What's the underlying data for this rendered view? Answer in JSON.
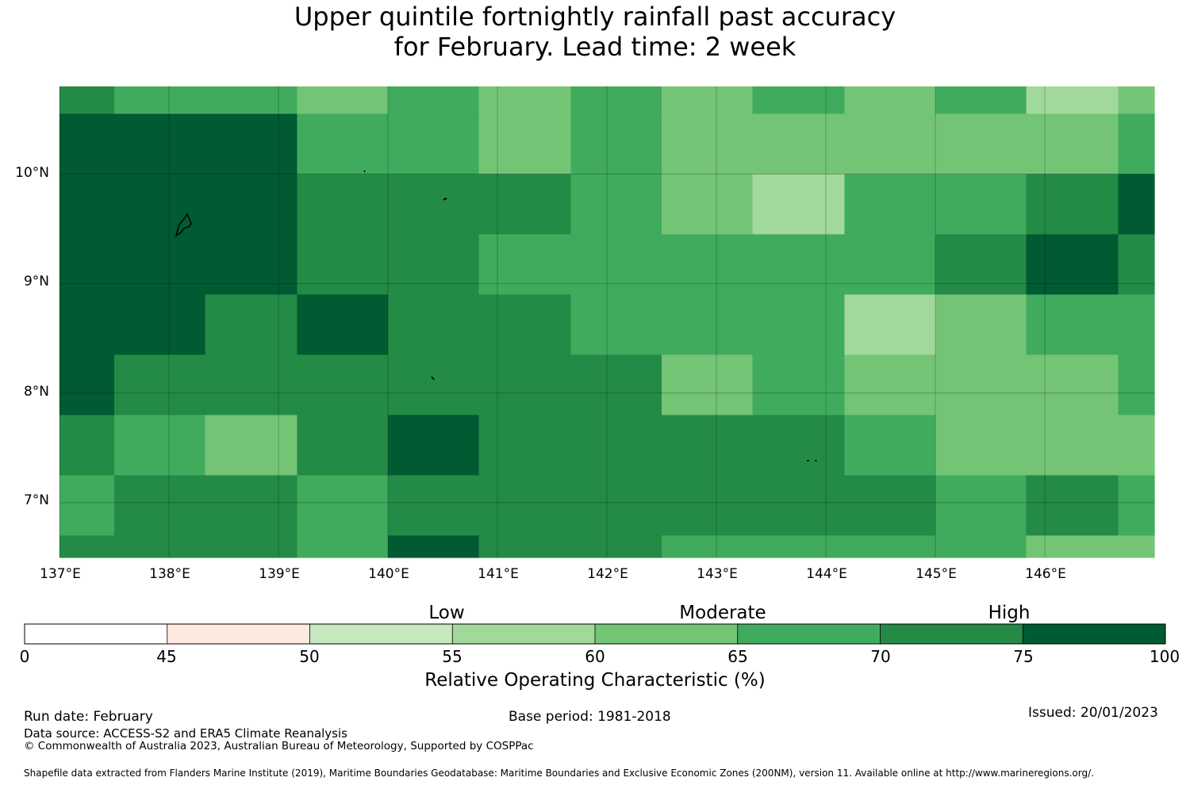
{
  "title": {
    "line1": "Upper quintile fortnightly rainfall past accuracy",
    "line2": "for February. Lead time: 2 week"
  },
  "map": {
    "lat_labels": [
      "10°N",
      "9°N",
      "8°N",
      "7°N"
    ],
    "lon_labels": [
      "137°E",
      "138°E",
      "139°E",
      "140°E",
      "141°E",
      "142°E",
      "143°E",
      "144°E",
      "145°E",
      "146°E"
    ],
    "lat_values": [
      10,
      9,
      8,
      7
    ],
    "lon_values": [
      137,
      138,
      139,
      140,
      141,
      142,
      143,
      144,
      145,
      146
    ],
    "extent": {
      "lon_min": 137,
      "lon_max": 147,
      "lat_min": 6.5,
      "lat_max": 10.8
    },
    "grid_lon_edges": [
      137.0,
      137.5,
      138.33,
      139.17,
      140.0,
      140.83,
      141.67,
      142.5,
      143.33,
      144.17,
      145.0,
      145.83,
      146.67,
      147.0
    ],
    "grid_lat_edges": [
      10.8,
      10.55,
      10.0,
      9.45,
      8.9,
      8.35,
      7.8,
      7.25,
      6.7,
      6.5
    ],
    "cells": [
      [
        6,
        5,
        5,
        4,
        5,
        4,
        5,
        4,
        5,
        4,
        5,
        3,
        4
      ],
      [
        7,
        7,
        7,
        5,
        5,
        4,
        5,
        4,
        4,
        4,
        4,
        4,
        5
      ],
      [
        7,
        7,
        7,
        6,
        6,
        6,
        5,
        4,
        3,
        5,
        5,
        6,
        7
      ],
      [
        7,
        7,
        7,
        6,
        6,
        5,
        5,
        5,
        5,
        5,
        6,
        7,
        6
      ],
      [
        7,
        7,
        6,
        7,
        6,
        6,
        5,
        5,
        5,
        3,
        4,
        5,
        5
      ],
      [
        7,
        6,
        6,
        6,
        6,
        6,
        6,
        4,
        5,
        4,
        4,
        4,
        5
      ],
      [
        6,
        5,
        4,
        6,
        7,
        6,
        6,
        6,
        6,
        5,
        4,
        4,
        4
      ],
      [
        5,
        6,
        6,
        5,
        6,
        6,
        6,
        6,
        6,
        6,
        5,
        6,
        5
      ],
      [
        6,
        6,
        6,
        5,
        7,
        6,
        6,
        5,
        5,
        5,
        5,
        4,
        4
      ]
    ]
  },
  "colorbar": {
    "bins": [
      0,
      45,
      50,
      55,
      60,
      65,
      70,
      75,
      100
    ],
    "tick_labels": [
      "0",
      "45",
      "50",
      "55",
      "60",
      "65",
      "70",
      "75",
      "100"
    ],
    "colors": [
      "#ffffff",
      "#fee8df",
      "#c7e9c0",
      "#a1d99b",
      "#74c476",
      "#41ab5d",
      "#238b45",
      "#005a32"
    ],
    "categories": [
      "Low",
      "Moderate",
      "High"
    ],
    "label": "Relative Operating Characteristic (%)"
  },
  "footer": {
    "run_date": "Run date: February",
    "base_period": "Base period: 1981-2018",
    "issued": "Issued: 20/01/2023",
    "data_source": "Data source: ACCESS-S2 and ERA5 Climate Reanalysis",
    "copyright": "© Commonwealth of Australia 2023, Australian Bureau of Meteorology, Supported by COSPPac",
    "shapefile": "Shapefile data extracted from Flanders Marine Institute (2019), Maritime Boundaries Geodatabase: Maritime Boundaries and Exclusive Economic Zones (200NM), version 11. Available online at http://www.marineregions.org/."
  }
}
